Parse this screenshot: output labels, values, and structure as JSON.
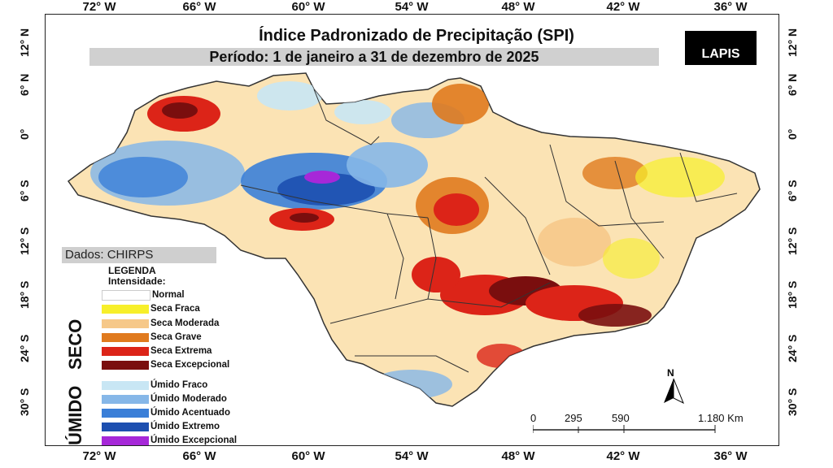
{
  "map": {
    "title": "Índice Padronizado de Precipitação (SPI)",
    "period": "Período: 1 de janeiro a 31 de dezembro de 2025",
    "logo": "LAPIS",
    "source": "Dados: CHIRPS",
    "longitude_ticks": [
      "72° W",
      "66° W",
      "60° W",
      "54° W",
      "48° W",
      "42° W",
      "36° W"
    ],
    "latitude_ticks": [
      "12° N",
      "6° N",
      "0°",
      "6° S",
      "12° S",
      "18° S",
      "24° S",
      "30° S"
    ],
    "north_label": "N",
    "scale": {
      "labels": [
        "0",
        "295",
        "590",
        "1.180 Km"
      ]
    }
  },
  "legend": {
    "title_line1": "LEGENDA",
    "title_line2": "Intensidade:",
    "dry_group": "SECO",
    "wet_group": "ÚMIDO",
    "normal": {
      "label": "Normal",
      "color": "#ffffff"
    },
    "dry": [
      {
        "label": "Seca Fraca",
        "color": "#f7ef2a"
      },
      {
        "label": "Seca Moderada",
        "color": "#f6c889"
      },
      {
        "label": "Seca Grave",
        "color": "#e07a1e"
      },
      {
        "label": "Seca Extrema",
        "color": "#dc2418"
      },
      {
        "label": "Seca Excepcional",
        "color": "#7a0e0e"
      }
    ],
    "wet": [
      {
        "label": "Úmido Fraco",
        "color": "#c8e6f4"
      },
      {
        "label": "Úmido Moderado",
        "color": "#86b7e8"
      },
      {
        "label": "Úmido Acentuado",
        "color": "#3b7fd8"
      },
      {
        "label": "Úmido Extremo",
        "color": "#1d4fb0"
      },
      {
        "label": "Úmido Excepcional",
        "color": "#a628d8"
      }
    ]
  }
}
